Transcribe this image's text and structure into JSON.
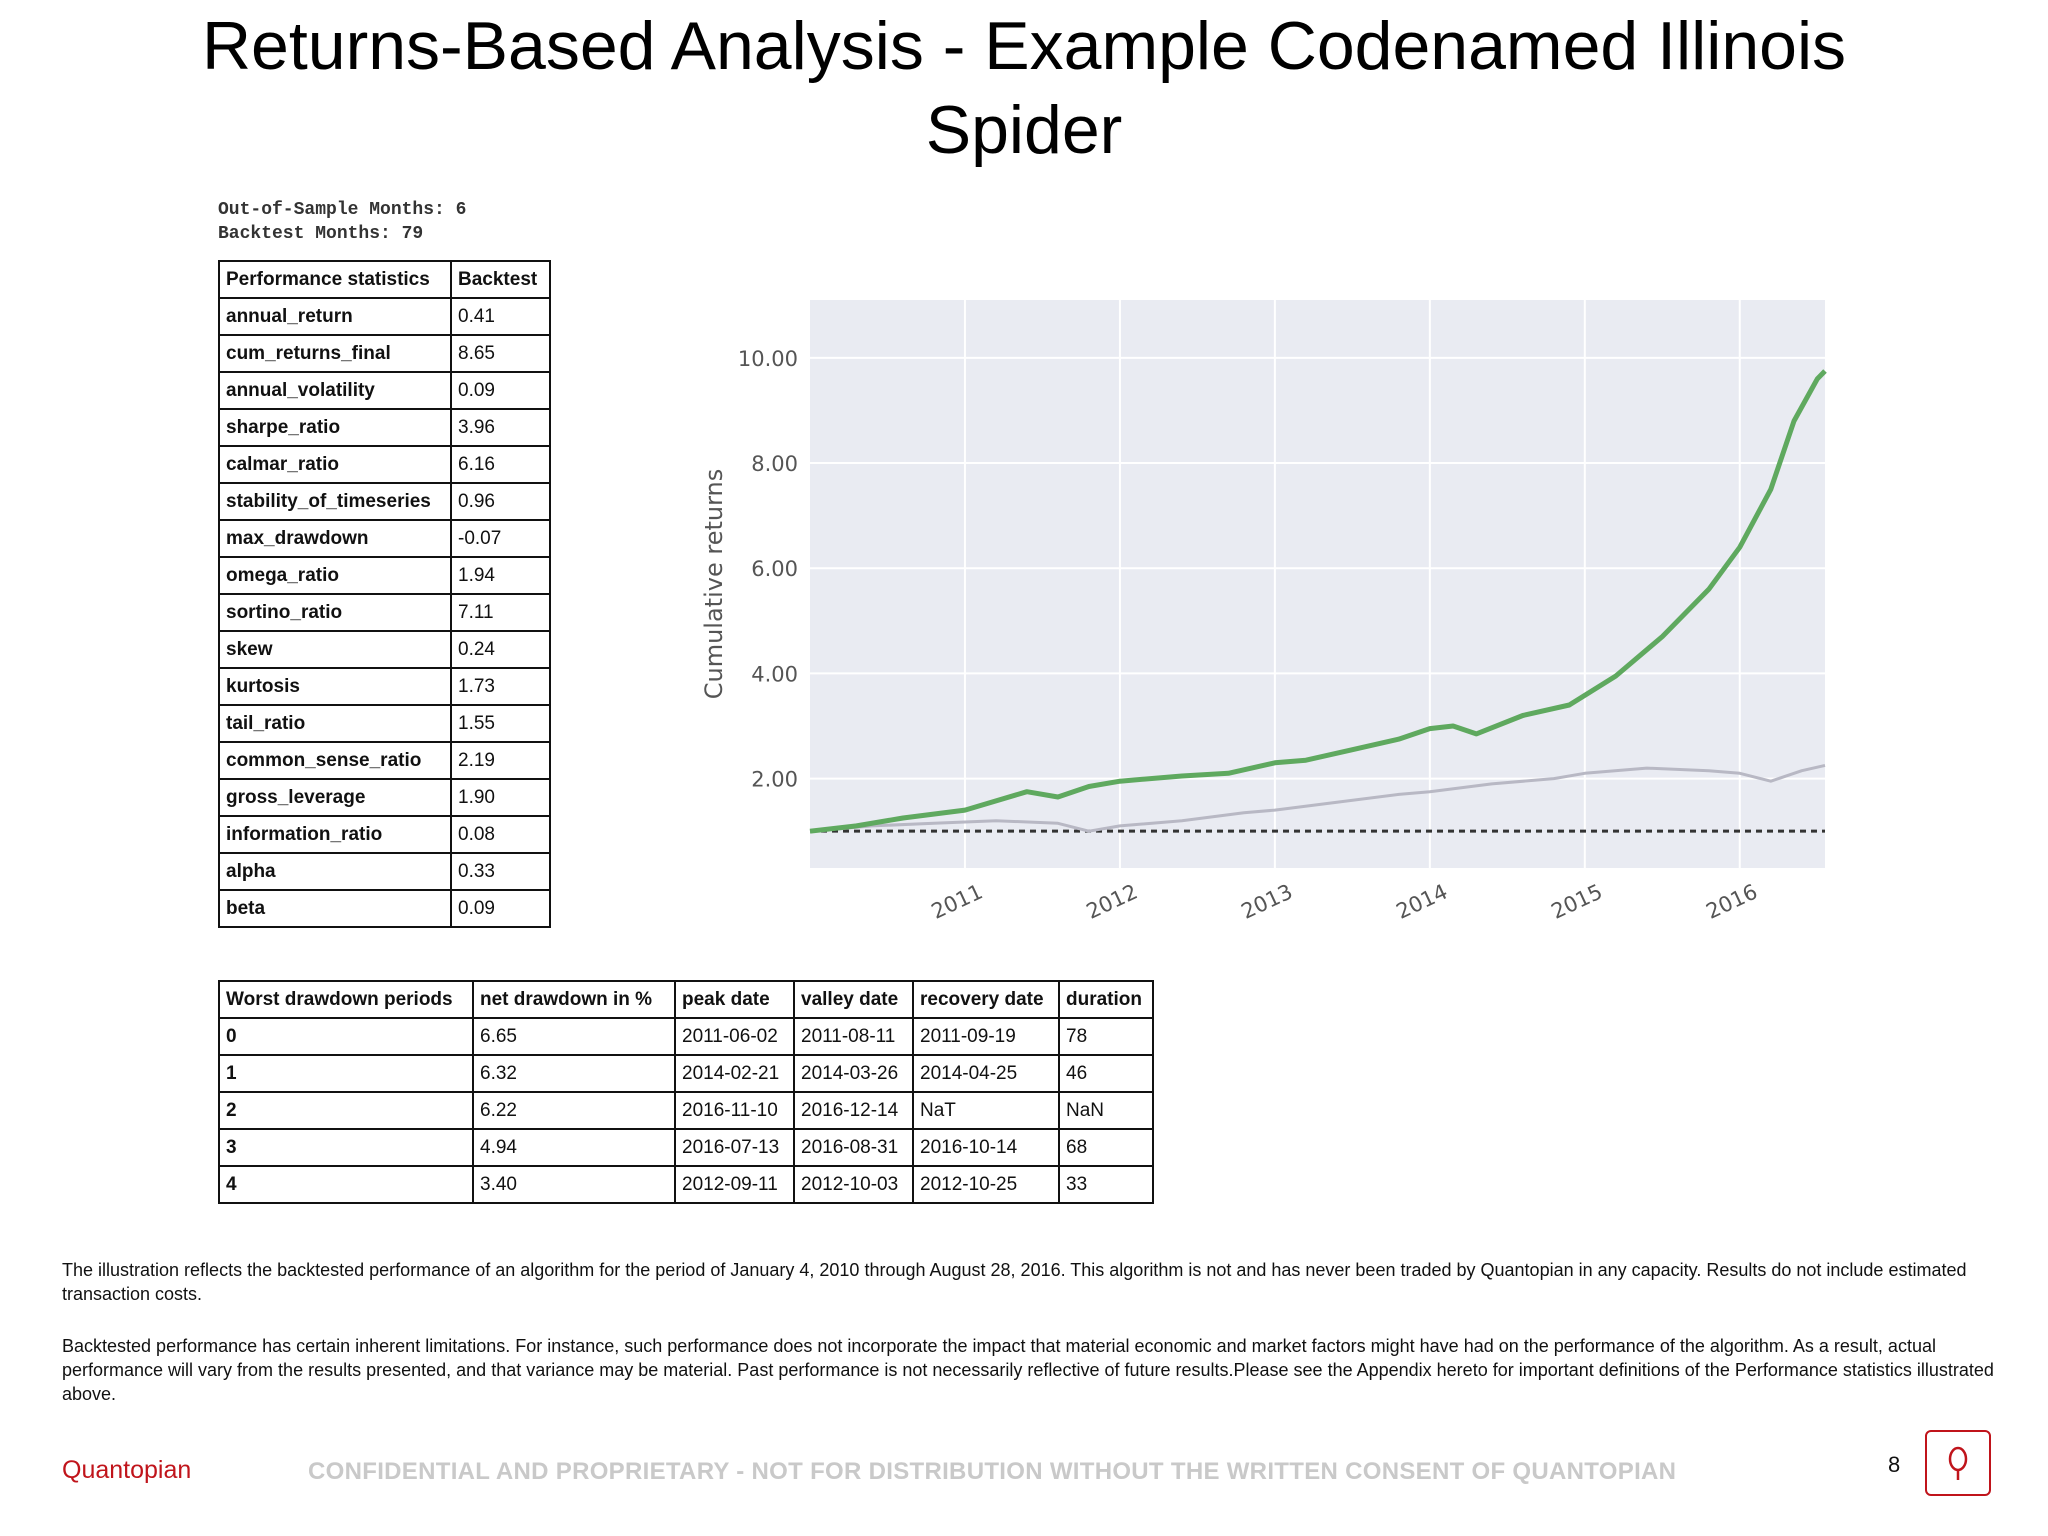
{
  "title_line1": "Returns-Based Analysis - Example Codenamed Illinois",
  "title_line2": "Spider",
  "meta": {
    "oos": "Out-of-Sample Months: 6",
    "backtest": "Backtest Months: 79"
  },
  "perf_table": {
    "headers": [
      "Performance statistics",
      "Backtest"
    ],
    "rows": [
      {
        "label": "annual_return",
        "value": "0.41"
      },
      {
        "label": "cum_returns_final",
        "value": "8.65"
      },
      {
        "label": "annual_volatility",
        "value": "0.09"
      },
      {
        "label": "sharpe_ratio",
        "value": "3.96"
      },
      {
        "label": "calmar_ratio",
        "value": "6.16"
      },
      {
        "label": "stability_of_timeseries",
        "value": "0.96"
      },
      {
        "label": "max_drawdown",
        "value": "-0.07"
      },
      {
        "label": "omega_ratio",
        "value": "1.94"
      },
      {
        "label": "sortino_ratio",
        "value": "7.11"
      },
      {
        "label": "skew",
        "value": "0.24"
      },
      {
        "label": "kurtosis",
        "value": "1.73"
      },
      {
        "label": "tail_ratio",
        "value": "1.55"
      },
      {
        "label": "common_sense_ratio",
        "value": "2.19"
      },
      {
        "label": "gross_leverage",
        "value": "1.90"
      },
      {
        "label": "information_ratio",
        "value": "0.08"
      },
      {
        "label": "alpha",
        "value": "0.33"
      },
      {
        "label": "beta",
        "value": "0.09"
      }
    ]
  },
  "dd_table": {
    "headers": [
      "Worst drawdown periods",
      "net drawdown in %",
      "peak date",
      "valley date",
      "recovery date",
      "duration"
    ],
    "rows": [
      [
        "0",
        "6.65",
        "2011-06-02",
        "2011-08-11",
        "2011-09-19",
        "78"
      ],
      [
        "1",
        "6.32",
        "2014-02-21",
        "2014-03-26",
        "2014-04-25",
        "46"
      ],
      [
        "2",
        "6.22",
        "2016-11-10",
        "2016-12-14",
        "NaT",
        "NaN"
      ],
      [
        "3",
        "4.94",
        "2016-07-13",
        "2016-08-31",
        "2016-10-14",
        "68"
      ],
      [
        "4",
        "3.40",
        "2012-09-11",
        "2012-10-03",
        "2012-10-25",
        "33"
      ]
    ]
  },
  "chart_data": {
    "type": "line",
    "title": "",
    "xlabel": "",
    "ylabel": "Cumulative returns",
    "x_ticks": [
      "2011",
      "2012",
      "2013",
      "2014",
      "2015",
      "2016"
    ],
    "y_ticks": [
      "2.00",
      "4.00",
      "6.00",
      "8.00",
      "10.00"
    ],
    "xlim": [
      2010.0,
      2016.55
    ],
    "ylim": [
      0.3,
      11.1
    ],
    "grid": true,
    "background_color": "#e9ebf2",
    "series": [
      {
        "color": "#5fa95f",
        "x": [
          2010.0,
          2010.3,
          2010.6,
          2011.0,
          2011.4,
          2011.6,
          2011.8,
          2012.0,
          2012.4,
          2012.7,
          2013.0,
          2013.2,
          2013.5,
          2013.8,
          2014.0,
          2014.15,
          2014.3,
          2014.6,
          2014.9,
          2015.2,
          2015.5,
          2015.8,
          2016.0,
          2016.2,
          2016.35,
          2016.5,
          2016.55
        ],
        "y": [
          1.0,
          1.1,
          1.25,
          1.4,
          1.75,
          1.65,
          1.85,
          1.95,
          2.05,
          2.1,
          2.3,
          2.35,
          2.55,
          2.75,
          2.95,
          3.0,
          2.85,
          3.2,
          3.4,
          3.95,
          4.7,
          5.6,
          6.4,
          7.5,
          8.8,
          9.6,
          9.75
        ]
      },
      {
        "color": "#b8b8c4",
        "x": [
          2010.0,
          2010.4,
          2010.8,
          2011.2,
          2011.6,
          2011.8,
          2012.0,
          2012.4,
          2012.8,
          2013.0,
          2013.4,
          2013.8,
          2014.0,
          2014.4,
          2014.8,
          2015.0,
          2015.4,
          2015.8,
          2016.0,
          2016.2,
          2016.4,
          2016.55
        ],
        "y": [
          1.0,
          1.1,
          1.15,
          1.2,
          1.15,
          1.0,
          1.1,
          1.2,
          1.35,
          1.4,
          1.55,
          1.7,
          1.75,
          1.9,
          2.0,
          2.1,
          2.2,
          2.15,
          2.1,
          1.95,
          2.15,
          2.25
        ]
      }
    ],
    "baseline": {
      "y": 1.0,
      "color": "#333333"
    }
  },
  "disclaimer1": "The illustration reflects the backtested performance of an algorithm for the period of January 4, 2010 through August 28, 2016. This algorithm is not and has never been traded by Quantopian in any capacity. Results do not include estimated transaction costs.",
  "disclaimer2": "Backtested performance has certain inherent limitations.  For instance, such performance does not incorporate the impact that material economic and market factors might have had on the performance of the algorithm. As a result, actual performance will vary from the results presented, and that variance may be material. Past performance is not necessarily reflective of future results.Please see the Appendix hereto for important definitions of the Performance statistics illustrated above.",
  "footer": {
    "brand": "Quantopian",
    "confidential": "CONFIDENTIAL AND PROPRIETARY - NOT FOR DISTRIBUTION WITHOUT THE WRITTEN CONSENT OF QUANTOPIAN",
    "page": "8"
  }
}
